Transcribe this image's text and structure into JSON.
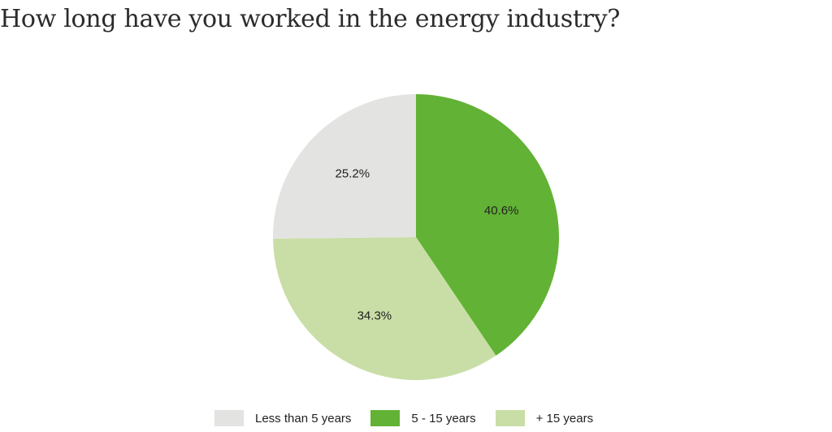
{
  "chart_data": {
    "type": "pie",
    "title": "How long have you worked in the energy industry?",
    "start_angle": "12 o'clock, clockwise",
    "legend_position": "bottom",
    "slices": [
      {
        "name": "5 - 15 years",
        "value": 40.6,
        "label": "40.6%",
        "color": "#62b235"
      },
      {
        "name": "+ 15 years",
        "value": 34.3,
        "label": "34.3%",
        "color": "#c9dea6"
      },
      {
        "name": "Less than 5 years",
        "value": 25.2,
        "label": "25.2%",
        "color": "#e3e3e1"
      }
    ],
    "legend": [
      {
        "label": "Less than 5 years",
        "color": "#e3e3e1"
      },
      {
        "label": "5 - 15 years",
        "color": "#62b235"
      },
      {
        "label": "+ 15 years",
        "color": "#c9dea6"
      }
    ]
  }
}
